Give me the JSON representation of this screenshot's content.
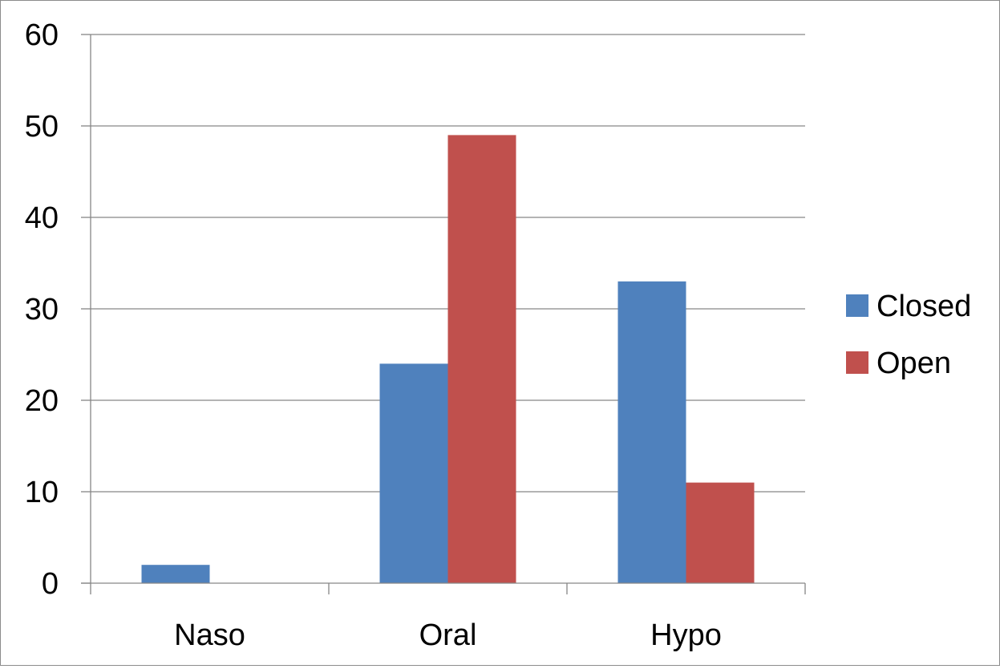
{
  "chart_data": {
    "type": "bar",
    "categories": [
      "Naso",
      "Oral",
      "Hypo"
    ],
    "series": [
      {
        "name": "Closed",
        "values": [
          2,
          24,
          33
        ],
        "color": "#4f81bd"
      },
      {
        "name": "Open",
        "values": [
          0,
          49,
          11
        ],
        "color": "#c0504d"
      }
    ],
    "y_ticks": [
      "0",
      "10",
      "20",
      "30",
      "40",
      "50",
      "60"
    ],
    "ylim": [
      0,
      60
    ],
    "grid": true,
    "legend_position": "right"
  }
}
